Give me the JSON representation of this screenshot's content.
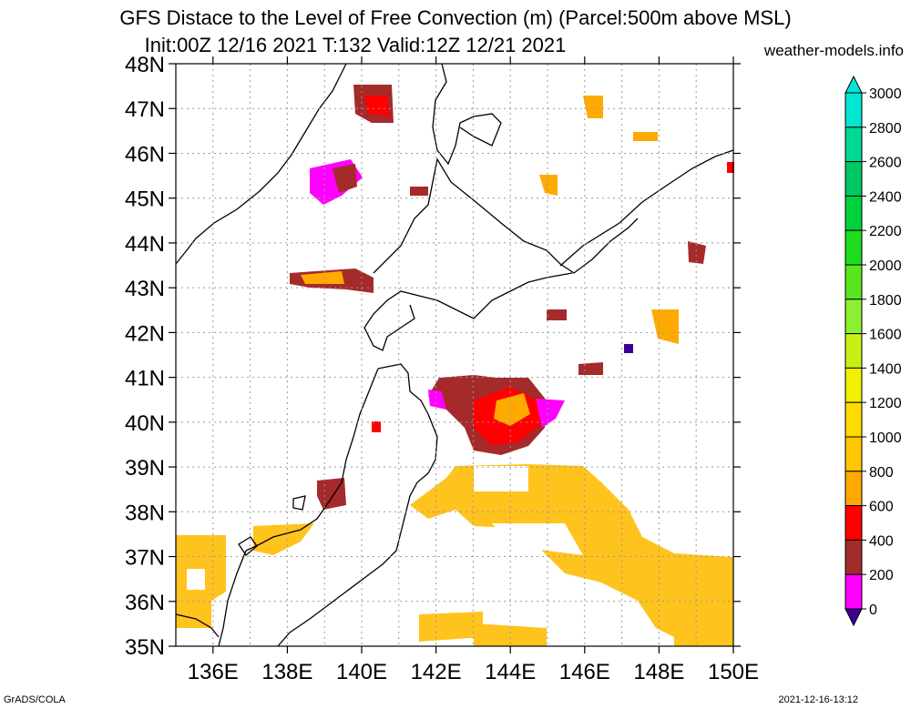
{
  "title_line1": "GFS Distace to the Level of Free Convection (m) (Parcel:500m above MSL)",
  "title_line2": "Init:00Z 12/16 2021 T:132 Valid:12Z 12/21 2021",
  "site": "weather-models.info",
  "footer_left": "GrADS/COLA",
  "footer_right": "2021-12-16-13:12",
  "lat_labels": [
    "48N",
    "47N",
    "46N",
    "45N",
    "44N",
    "43N",
    "42N",
    "41N",
    "40N",
    "39N",
    "38N",
    "37N",
    "36N",
    "35N"
  ],
  "lon_labels": [
    "136E",
    "138E",
    "140E",
    "142E",
    "144E",
    "146E",
    "148E",
    "150E"
  ],
  "colorbar": {
    "labels": [
      "3000",
      "2800",
      "2600",
      "2400",
      "2200",
      "2000",
      "1800",
      "1600",
      "1400",
      "1200",
      "1000",
      "800",
      "600",
      "400",
      "200",
      "0"
    ],
    "colors": [
      "#00e6d2",
      "#00d796",
      "#00c864",
      "#00d23c",
      "#1edc1e",
      "#5ae61e",
      "#8cf032",
      "#c8f014",
      "#f0f000",
      "#ffdc00",
      "#ffc800",
      "#ffaa00",
      "#ff0000",
      "#a52a2a",
      "#ff00ff",
      "#3c0096"
    ]
  }
}
